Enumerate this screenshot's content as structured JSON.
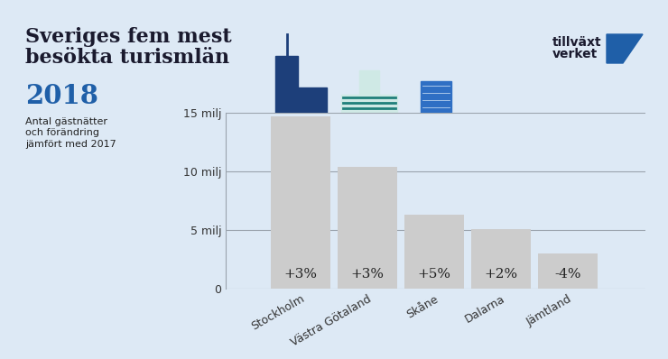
{
  "chart_data": {
    "type": "bar",
    "title": "Sveriges fem mest\nbesökta turismlän",
    "subtitle": "2018",
    "description": "Antal gästnätter\noch förändring\njämfört med 2017",
    "source": "tillväxt\nverket",
    "categories": [
      "Stockholm",
      "Västra Götaland",
      "Skåne",
      "Dalarna",
      "Jämtland"
    ],
    "values": [
      14.7,
      10.4,
      6.3,
      5.1,
      3.0
    ],
    "change_labels": [
      "+3%",
      "+3%",
      "+5%",
      "+2%",
      "-4%"
    ],
    "color": "#cccccc",
    "ylim": [
      0,
      15
    ],
    "yticks": [
      0,
      {
        "value": 5,
        "label": "5 milj"
      },
      {
        "value": 10,
        "label": "10 milj"
      },
      {
        "value": 15,
        "label": "15 milj"
      }
    ],
    "grid": true
  }
}
